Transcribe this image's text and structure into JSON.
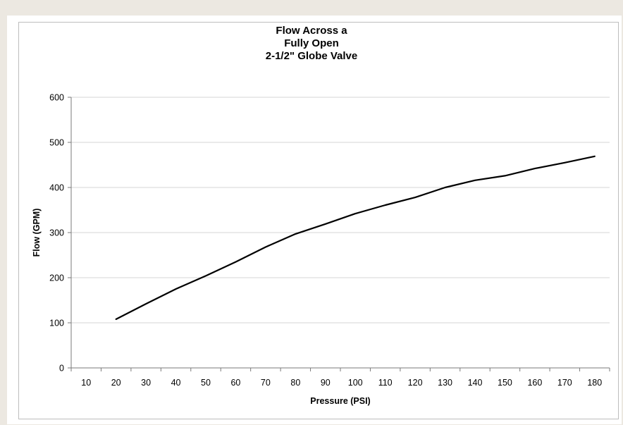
{
  "chart_data": {
    "type": "line",
    "title": [
      "Flow Across a",
      "Fully Open",
      "2-1/2\" Globe Valve"
    ],
    "xlabel": "Pressure (PSI)",
    "ylabel": "Flow (GPM)",
    "categories": [
      "10",
      "20",
      "30",
      "40",
      "50",
      "60",
      "70",
      "80",
      "90",
      "100",
      "110",
      "120",
      "130",
      "140",
      "150",
      "160",
      "170",
      "180"
    ],
    "yticks": [
      "0",
      "100",
      "200",
      "300",
      "400",
      "500",
      "600"
    ],
    "ylim": [
      0,
      600
    ],
    "grid": true,
    "legend": "none",
    "series": [
      {
        "color": "#000000",
        "x": [
          20,
          30,
          40,
          50,
          60,
          70,
          80,
          90,
          100,
          110,
          120,
          130,
          140,
          150,
          160,
          170,
          180
        ],
        "values": [
          108,
          142,
          175,
          204,
          235,
          268,
          297,
          319,
          342,
          361,
          378,
          400,
          416,
          426,
          442,
          455,
          469
        ]
      }
    ]
  }
}
